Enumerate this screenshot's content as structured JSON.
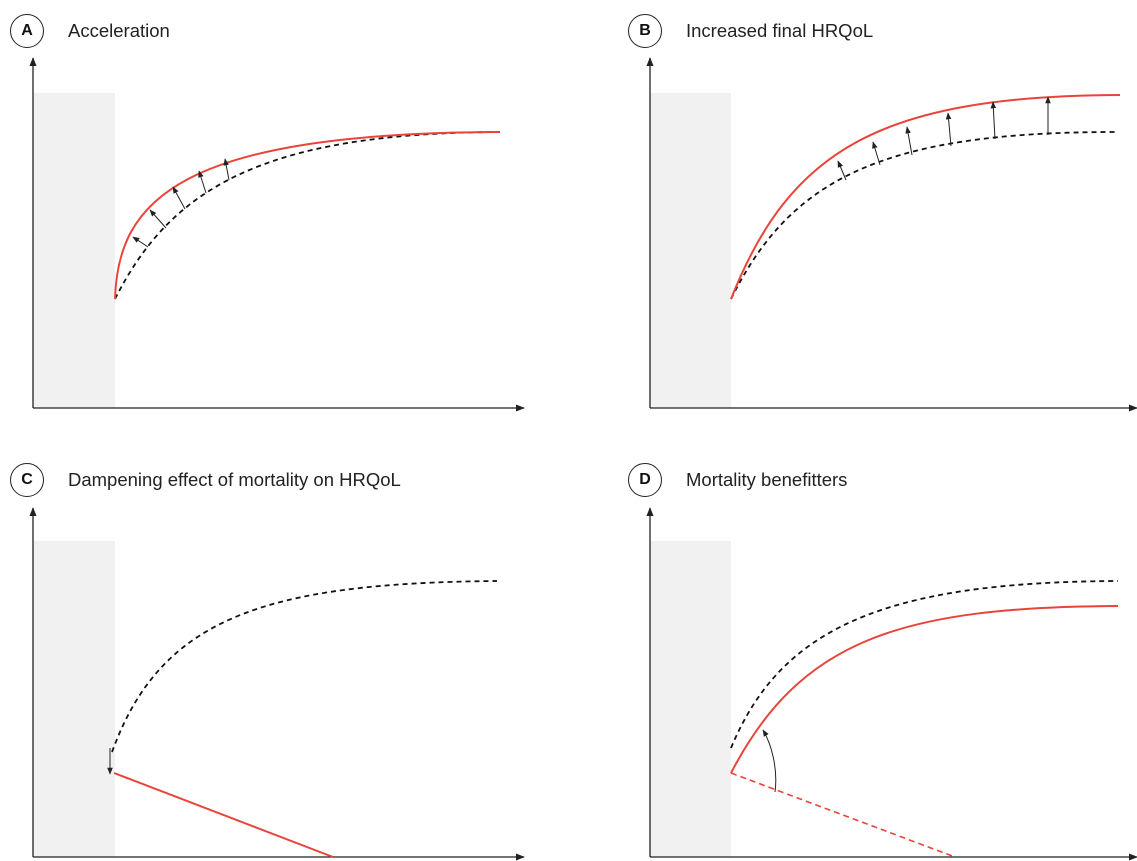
{
  "panels": [
    {
      "id": "A",
      "letter": "A",
      "title": "Acceleration"
    },
    {
      "id": "B",
      "letter": "B",
      "title": "Increased final HRQoL"
    },
    {
      "id": "C",
      "letter": "C",
      "title": "Dampening effect of mortality on HRQoL"
    },
    {
      "id": "D",
      "letter": "D",
      "title": "Mortality benefitters"
    }
  ],
  "colors": {
    "treatment_curve": "#e8443a",
    "reference_curve": "#111111",
    "axis": "#222222",
    "shaded_region": "#f1f1f1"
  }
}
